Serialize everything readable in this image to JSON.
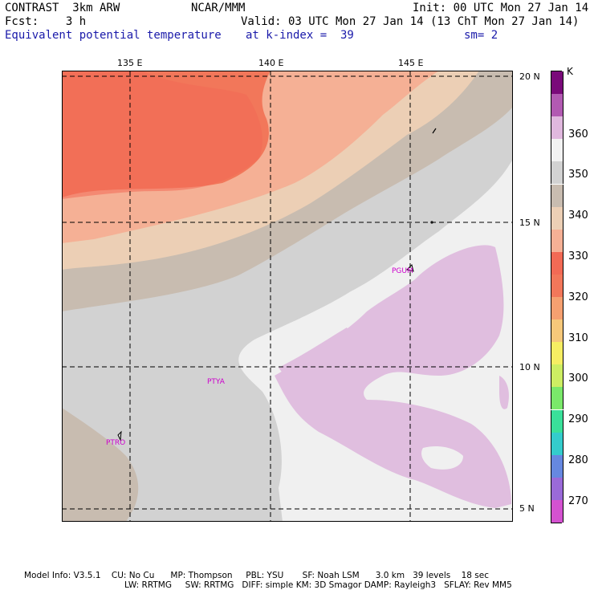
{
  "header": {
    "line1_left": "CONTRAST  3km ARW",
    "line1_mid": "NCAR/MMM",
    "line1_right": "Init: 00 UTC Mon 27 Jan 14",
    "line2_left": "Fcst:    3 h",
    "line2_right": "Valid: 03 UTC Mon 27 Jan 14 (13 ChT Mon 27 Jan 14)",
    "line3_left": "Equivalent potential temperature",
    "line3_mid": "at k-index =  39",
    "line3_right": "sm= 2"
  },
  "map": {
    "lon_labels": [
      "135 E",
      "140 E",
      "145 E"
    ],
    "lat_labels": [
      "20 N",
      "15 N",
      "10 N",
      "5 N"
    ],
    "places": [
      "PGUM",
      "PTYA",
      "PTRO"
    ]
  },
  "legend": {
    "unit": "K",
    "labels": [
      "360",
      "350",
      "340",
      "330",
      "320",
      "310",
      "300",
      "290",
      "280",
      "270"
    ],
    "colors": [
      "#7a0a7a",
      "#b25ab2",
      "#e0b8de",
      "#f2f2f2",
      "#d2d2d2",
      "#c8bcb0",
      "#eccfb5",
      "#f5b095",
      "#f26a55",
      "#f2775a",
      "#f5a070",
      "#f6c87a",
      "#f6ee63",
      "#cdee63",
      "#7ae86a",
      "#3ae09a",
      "#34cccc",
      "#6688e0",
      "#9a6ad8",
      "#d452d0"
    ]
  },
  "footer": {
    "line1": "Model Info: V3.5.1    CU: No Cu      MP: Thompson     PBL: YSU       SF: Noah LSM      3.0 km   39 levels    18 sec",
    "line2": "LW: RRTMG     SW: RRTMG   DIFF: simple KM: 3D Smagor DAMP: Rayleigh3   SFLAY: Rev MM5"
  }
}
